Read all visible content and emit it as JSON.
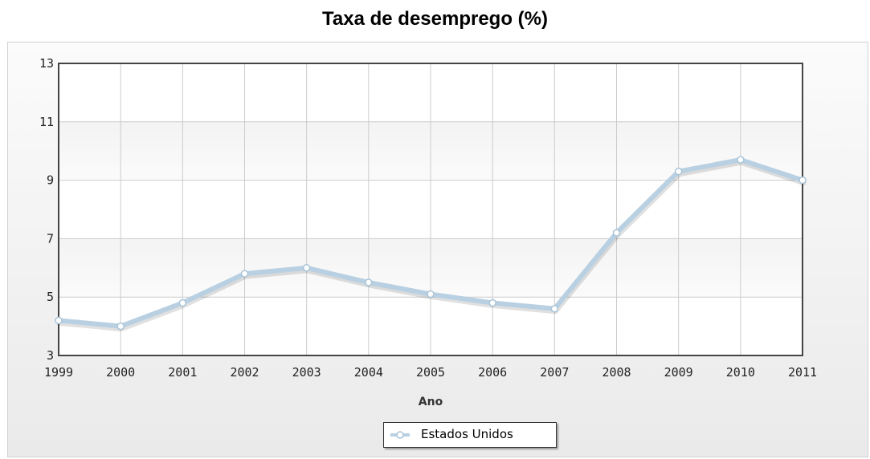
{
  "chart_data": {
    "type": "line",
    "title": "Taxa de desemprego (%)",
    "xlabel": "Ano",
    "ylabel": "",
    "x": [
      1999,
      2000,
      2001,
      2002,
      2003,
      2004,
      2005,
      2006,
      2007,
      2008,
      2009,
      2010,
      2011
    ],
    "y_ticks": [
      3,
      5,
      7,
      9,
      11,
      13
    ],
    "ylim": [
      3,
      13
    ],
    "grid": true,
    "legend_position": "bottom-center",
    "series": [
      {
        "name": "Estados Unidos",
        "color": "#b8d0e2",
        "values": [
          4.2,
          4.0,
          4.8,
          5.8,
          6.0,
          5.5,
          5.1,
          4.8,
          4.6,
          7.2,
          9.3,
          9.7,
          9.0
        ]
      }
    ]
  }
}
